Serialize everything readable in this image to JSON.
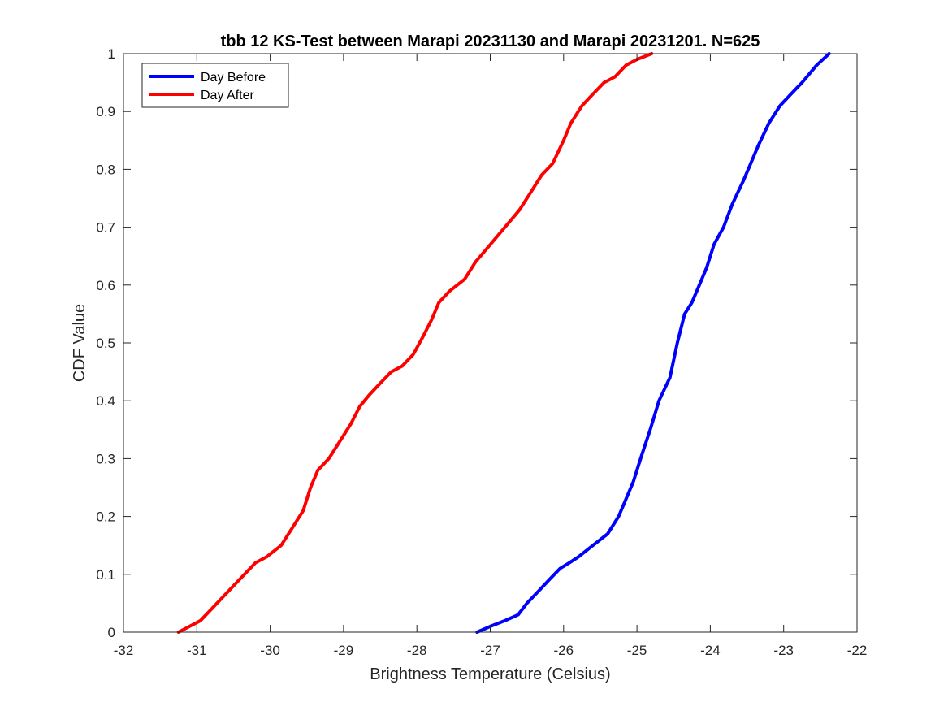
{
  "chart_data": {
    "type": "line",
    "title": "tbb 12 KS-Test between Marapi 20231130 and Marapi 20231201. N=625",
    "xlabel": "Brightness Temperature (Celsius)",
    "ylabel": "CDF Value",
    "xlim": [
      -32,
      -22
    ],
    "ylim": [
      0,
      1
    ],
    "xticks": [
      -32,
      -31,
      -30,
      -29,
      -28,
      -27,
      -26,
      -25,
      -24,
      -23,
      -22
    ],
    "yticks": [
      0,
      0.1,
      0.2,
      0.3,
      0.4,
      0.5,
      0.6,
      0.7,
      0.8,
      0.9,
      1
    ],
    "grid": false,
    "legend_position": "top-left",
    "series": [
      {
        "name": "Day Before",
        "color": "#0000ff",
        "x": [
          -27.18,
          -27.0,
          -26.8,
          -26.62,
          -26.5,
          -26.35,
          -26.2,
          -26.05,
          -25.92,
          -25.8,
          -25.6,
          -25.4,
          -25.25,
          -25.15,
          -25.05,
          -24.95,
          -24.82,
          -24.7,
          -24.55,
          -24.45,
          -24.35,
          -24.25,
          -24.15,
          -24.05,
          -23.95,
          -23.82,
          -23.7,
          -23.55,
          -23.45,
          -23.35,
          -23.2,
          -23.05,
          -22.9,
          -22.75,
          -22.55,
          -22.38
        ],
        "y": [
          0.0,
          0.01,
          0.02,
          0.03,
          0.05,
          0.07,
          0.09,
          0.11,
          0.12,
          0.13,
          0.15,
          0.17,
          0.2,
          0.23,
          0.26,
          0.3,
          0.35,
          0.4,
          0.44,
          0.5,
          0.55,
          0.57,
          0.6,
          0.63,
          0.67,
          0.7,
          0.74,
          0.78,
          0.81,
          0.84,
          0.88,
          0.91,
          0.93,
          0.95,
          0.98,
          1.0
        ]
      },
      {
        "name": "Day After",
        "color": "#ff0000",
        "x": [
          -31.25,
          -31.1,
          -30.95,
          -30.8,
          -30.65,
          -30.5,
          -30.35,
          -30.2,
          -30.05,
          -29.85,
          -29.7,
          -29.55,
          -29.45,
          -29.35,
          -29.2,
          -29.05,
          -28.9,
          -28.78,
          -28.65,
          -28.5,
          -28.35,
          -28.2,
          -28.05,
          -27.92,
          -27.8,
          -27.7,
          -27.55,
          -27.35,
          -27.2,
          -27.0,
          -26.8,
          -26.6,
          -26.45,
          -26.3,
          -26.15,
          -26.0,
          -25.9,
          -25.75,
          -25.6,
          -25.45,
          -25.3,
          -25.15,
          -25.0,
          -24.8
        ],
        "y": [
          0.0,
          0.01,
          0.02,
          0.04,
          0.06,
          0.08,
          0.1,
          0.12,
          0.13,
          0.15,
          0.18,
          0.21,
          0.25,
          0.28,
          0.3,
          0.33,
          0.36,
          0.39,
          0.41,
          0.43,
          0.45,
          0.46,
          0.48,
          0.51,
          0.54,
          0.57,
          0.59,
          0.61,
          0.64,
          0.67,
          0.7,
          0.73,
          0.76,
          0.79,
          0.81,
          0.85,
          0.88,
          0.91,
          0.93,
          0.95,
          0.96,
          0.98,
          0.99,
          1.0
        ]
      }
    ]
  }
}
